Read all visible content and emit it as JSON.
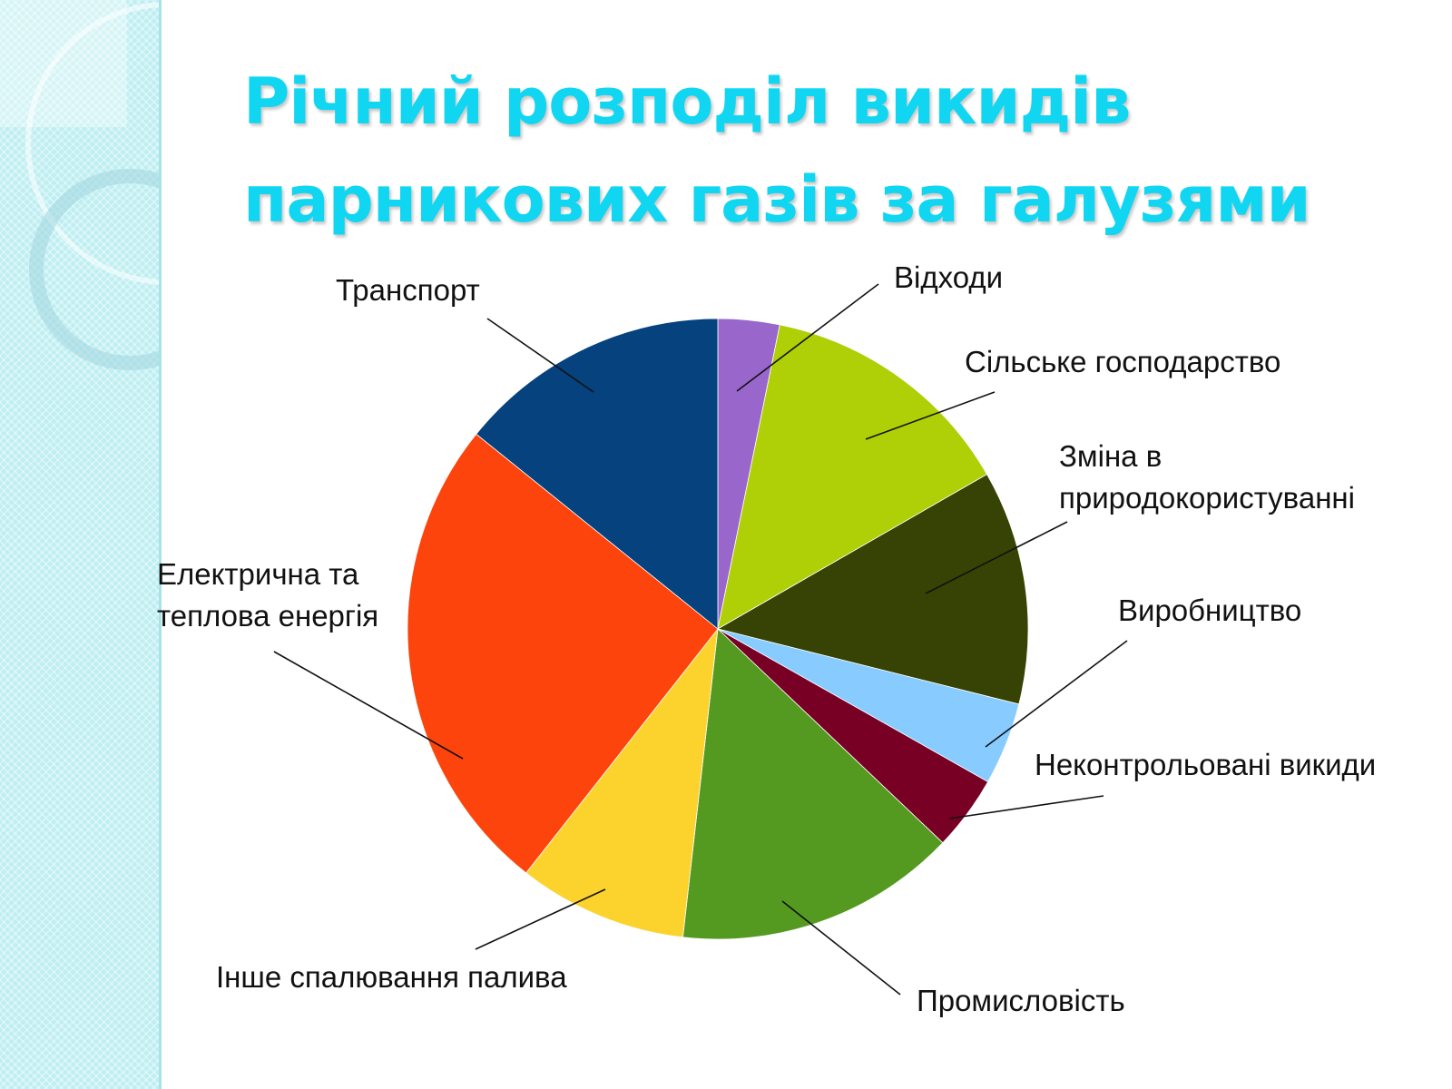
{
  "title_lines": [
    "Річний розподіл викидів",
    "парникових газів за галузями"
  ],
  "chart_data": {
    "type": "pie",
    "title": "Річний розподіл викидів парникових газів за галузями",
    "start_angle_deg": 0,
    "direction": "clockwise",
    "slices": [
      {
        "label": "Відходи",
        "value": 3.2,
        "color": "#9966cc"
      },
      {
        "label": "Сільське господарство",
        "value": 13.5,
        "color": "#afcf06"
      },
      {
        "label": "Зміна в природокористуванні",
        "value": 12.2,
        "color": "#374304"
      },
      {
        "label": "Виробництво",
        "value": 4.3,
        "color": "#88ccff"
      },
      {
        "label": "Неконтрольовані викиди",
        "value": 3.9,
        "color": "#780024"
      },
      {
        "label": "Промисловість",
        "value": 14.7,
        "color": "#559a20"
      },
      {
        "label": "Інше спалювання палива",
        "value": 8.8,
        "color": "#fcd22c"
      },
      {
        "label": "Електрична та теплова енергія",
        "value": 25.2,
        "color": "#fc440c"
      },
      {
        "label": "Транспорт",
        "value": 14.2,
        "color": "#05427e"
      }
    ],
    "labels_display": [
      {
        "for": "Відходи",
        "lines": [
          "Відходи"
        ]
      },
      {
        "for": "Сільське господарство",
        "lines": [
          "Сільське господарство"
        ]
      },
      {
        "for": "Зміна в природокористуванні",
        "lines": [
          "Зміна в",
          "природокористуванні"
        ]
      },
      {
        "for": "Виробництво",
        "lines": [
          "Виробництво"
        ]
      },
      {
        "for": "Неконтрольовані викиди",
        "lines": [
          "Неконтрольовані викиди"
        ]
      },
      {
        "for": "Промисловість",
        "lines": [
          "Промисловість"
        ]
      },
      {
        "for": "Інше спалювання палива",
        "lines": [
          "Інше спалювання палива"
        ]
      },
      {
        "for": "Електрична та теплова енергія",
        "lines": [
          "Електрична та",
          "теплова енергія"
        ]
      },
      {
        "for": "Транспорт",
        "lines": [
          "Транспорт"
        ]
      }
    ],
    "legend": "none"
  }
}
